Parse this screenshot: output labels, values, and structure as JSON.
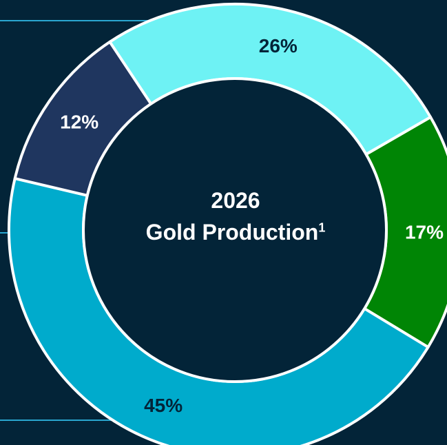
{
  "chart_data": {
    "type": "pie",
    "center_label": {
      "year": "2026",
      "title": "Gold Production",
      "footnote": "1"
    },
    "slices": [
      {
        "value": 17,
        "label": "17%",
        "color": "#008505",
        "text_color": "#ffffff"
      },
      {
        "value": 45,
        "label": "45%",
        "color": "#00abcc",
        "text_color": "#032438"
      },
      {
        "value": 12,
        "label": "12%",
        "color": "#1f365f",
        "text_color": "#ffffff"
      },
      {
        "value": 26,
        "label": "26%",
        "color": "#6ef2f4",
        "text_color": "#032438"
      }
    ],
    "background_color": "#032438",
    "separator_color": "#ffffff",
    "leader_line_color": "#2aa7d0"
  }
}
